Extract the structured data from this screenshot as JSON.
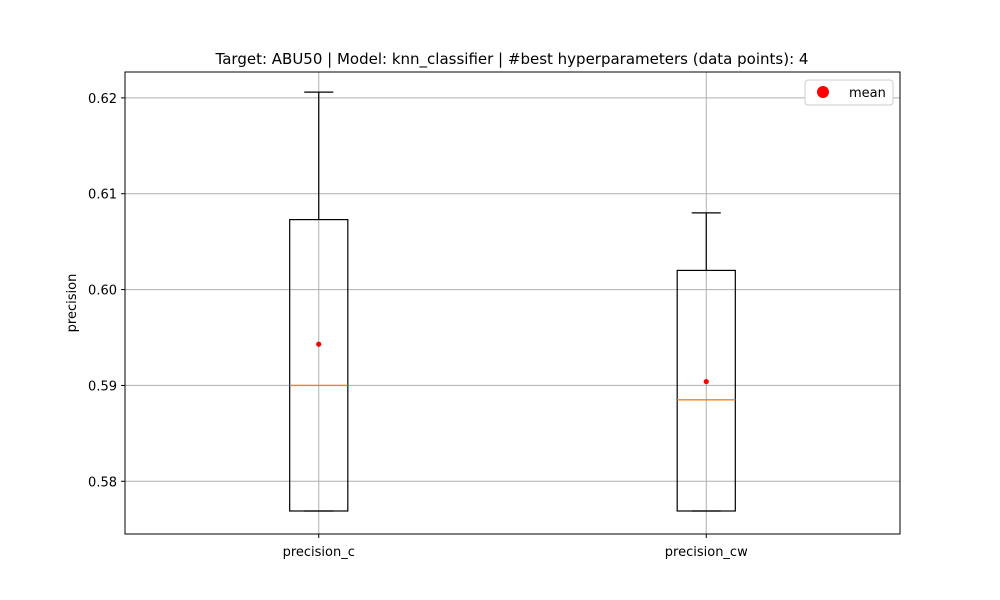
{
  "chart_data": {
    "type": "box",
    "title": "Target: ABU50 | Model: knn_classifier | #best hyperparameters (data points): 4",
    "xlabel": "",
    "ylabel": "precision",
    "ylim": [
      0.5745,
      0.6227
    ],
    "yticks": [
      0.58,
      0.59,
      0.6,
      0.61,
      0.62
    ],
    "ytick_labels": [
      "0.58",
      "0.59",
      "0.60",
      "0.61",
      "0.62"
    ],
    "grid": true,
    "legend": {
      "position": "top-right",
      "entries": [
        "mean"
      ]
    },
    "categories": [
      "precision_c",
      "precision_cw"
    ],
    "series": [
      {
        "category": "precision_c",
        "whisker_low": 0.5769,
        "q1": 0.5769,
        "median": 0.59,
        "q3": 0.6073,
        "whisker_high": 0.6206,
        "mean": 0.5943
      },
      {
        "category": "precision_cw",
        "whisker_low": 0.5769,
        "q1": 0.5769,
        "median": 0.5885,
        "q3": 0.602,
        "whisker_high": 0.608,
        "mean": 0.5904
      }
    ],
    "colors": {
      "box": "#000000",
      "median": "#ff7f0e",
      "mean": "#ff0000",
      "grid": "#b0b0b0"
    }
  }
}
